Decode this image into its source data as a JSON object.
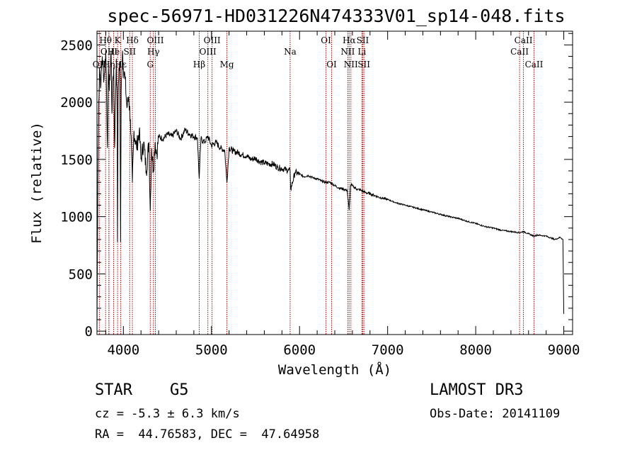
{
  "chart_data": {
    "type": "line",
    "title": "spec-56971-HD031226N474333V01_sp14-048.fits",
    "xlabel": "Wavelength (Å)",
    "ylabel": "Flux (relative)",
    "xlim": [
      3700,
      9100
    ],
    "ylim": [
      -30,
      2620
    ],
    "xticks": [
      4000,
      5000,
      6000,
      7000,
      8000,
      9000
    ],
    "yticks": [
      0,
      500,
      1000,
      1500,
      2000,
      2500
    ],
    "spectrum": {
      "x": [
        3700,
        3710,
        3720,
        3730,
        3745,
        3760,
        3780,
        3800,
        3820,
        3830,
        3840,
        3860,
        3870,
        3880,
        3890,
        3900,
        3910,
        3920,
        3930,
        3933,
        3940,
        3950,
        3960,
        3968,
        3975,
        3990,
        4000,
        4020,
        4040,
        4060,
        4080,
        4102,
        4120,
        4150,
        4180,
        4200,
        4230,
        4260,
        4290,
        4305,
        4320,
        4340,
        4360,
        4380,
        4400,
        4450,
        4500,
        4550,
        4600,
        4650,
        4700,
        4750,
        4800,
        4840,
        4861,
        4880,
        4920,
        4960,
        5000,
        5050,
        5100,
        5150,
        5175,
        5200,
        5250,
        5300,
        5350,
        5400,
        5450,
        5500,
        5550,
        5600,
        5650,
        5700,
        5750,
        5800,
        5850,
        5893,
        5900,
        5950,
        6000,
        6050,
        6100,
        6150,
        6200,
        6250,
        6300,
        6350,
        6400,
        6450,
        6500,
        6540,
        6563,
        6580,
        6600,
        6650,
        6700,
        6750,
        6800,
        6900,
        7000,
        7100,
        7200,
        7300,
        7400,
        7500,
        7600,
        7700,
        7800,
        7900,
        8000,
        8100,
        8200,
        8300,
        8400,
        8498,
        8542,
        8600,
        8662,
        8700,
        8800,
        8900,
        8960,
        8990,
        9000
      ],
      "y": [
        0,
        1300,
        2000,
        2300,
        2150,
        2400,
        2200,
        2450,
        1600,
        2300,
        2100,
        2450,
        1900,
        2200,
        2300,
        1600,
        2000,
        2380,
        1900,
        780,
        2000,
        2300,
        2350,
        780,
        2100,
        2450,
        2300,
        2200,
        1950,
        2050,
        1850,
        1300,
        1750,
        1600,
        1750,
        1500,
        1650,
        1400,
        1650,
        1050,
        1600,
        1400,
        1650,
        1550,
        1700,
        1680,
        1720,
        1700,
        1750,
        1680,
        1760,
        1720,
        1700,
        1690,
        1330,
        1680,
        1650,
        1700,
        1620,
        1650,
        1600,
        1580,
        1300,
        1600,
        1570,
        1560,
        1540,
        1530,
        1500,
        1510,
        1480,
        1470,
        1460,
        1460,
        1430,
        1420,
        1410,
        1400,
        1240,
        1390,
        1370,
        1350,
        1360,
        1340,
        1330,
        1310,
        1300,
        1300,
        1270,
        1250,
        1240,
        1230,
        1060,
        1280,
        1270,
        1240,
        1230,
        1210,
        1200,
        1170,
        1150,
        1120,
        1100,
        1080,
        1060,
        1040,
        1020,
        1000,
        985,
        960,
        940,
        915,
        900,
        880,
        870,
        860,
        870,
        850,
        830,
        840,
        830,
        800,
        820,
        800,
        150
      ]
    },
    "lines": [
      {
        "label": "OII",
        "wl": 3727,
        "row": 3
      },
      {
        "label": "Hθ",
        "wl": 3798,
        "row": 1
      },
      {
        "label": "OIII",
        "wl": 3836,
        "row": 2
      },
      {
        "label": "Hη",
        "wl": 3835,
        "row": 3
      },
      {
        "label": "K",
        "wl": 3934,
        "row": 1
      },
      {
        "label": "He",
        "wl": 3889,
        "row": 2
      },
      {
        "label": "Hε",
        "wl": 3970,
        "row": 3
      },
      {
        "label": "Hδ",
        "wl": 4102,
        "row": 1
      },
      {
        "label": "SII",
        "wl": 4072,
        "row": 2
      },
      {
        "label": "OIII",
        "wl": 4363,
        "row": 1
      },
      {
        "label": "Hγ",
        "wl": 4341,
        "row": 2
      },
      {
        "label": "G",
        "wl": 4305,
        "row": 3
      },
      {
        "label": "Hβ",
        "wl": 4861,
        "row": 3
      },
      {
        "label": "OIII",
        "wl": 5007,
        "row": 1
      },
      {
        "label": "OIII",
        "wl": 4959,
        "row": 2
      },
      {
        "label": "Mg",
        "wl": 5175,
        "row": 3
      },
      {
        "label": "Na",
        "wl": 5893,
        "row": 2
      },
      {
        "label": "OI",
        "wl": 6300,
        "row": 1
      },
      {
        "label": "OI",
        "wl": 6364,
        "row": 3
      },
      {
        "label": "Hα",
        "wl": 6563,
        "row": 1
      },
      {
        "label": "NII",
        "wl": 6548,
        "row": 2
      },
      {
        "label": "NII",
        "wl": 6583,
        "row": 3
      },
      {
        "label": "SII",
        "wl": 6717,
        "row": 1
      },
      {
        "label": "Li",
        "wl": 6708,
        "row": 2
      },
      {
        "label": "SII",
        "wl": 6731,
        "row": 3
      },
      {
        "label": "CaII",
        "wl": 8542,
        "row": 1
      },
      {
        "label": "CaII",
        "wl": 8498,
        "row": 2
      },
      {
        "label": "CaII",
        "wl": 8662,
        "row": 3
      }
    ],
    "colors": {
      "line_marker": "#b00000",
      "spectrum": "#000000",
      "axes": "#000000"
    }
  },
  "info": {
    "object_type": "STAR    G5",
    "redshift": "cz = -5.3 ± 6.3 km/s",
    "coords": "RA =  44.76583, DEC =  47.64958",
    "survey": "LAMOST DR3",
    "obs_date": "Obs-Date: 20141109"
  }
}
